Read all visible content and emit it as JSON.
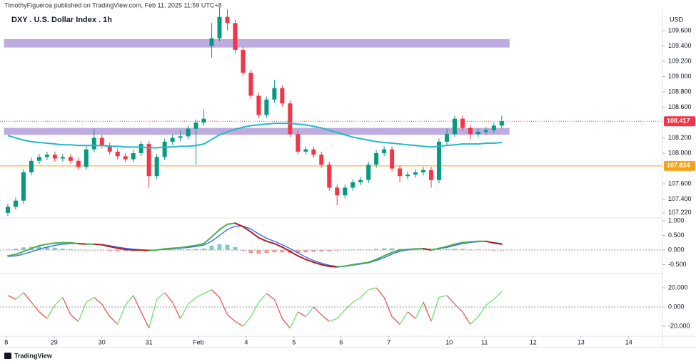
{
  "header": {
    "publisher": "TimothyFigueroa published on TradingView.com, Feb 11, 2025 11:59 UTC+8",
    "title": "DXY . U.S. Dollar Index . 1h",
    "currency": "USD"
  },
  "footer": {
    "brand": "TradingView"
  },
  "chart_data": [
    {
      "type": "candlestick",
      "up_color": "#089981",
      "down_color": "#f23645",
      "ema_color": "#22b8c8",
      "zone_color": "#b39ddb",
      "level_color": "#f7a21b",
      "price_color": "#f23645",
      "xlim": [
        -1,
        83.5
      ],
      "ylim": [
        107.163,
        109.833
      ],
      "xticks": [
        {
          "value": -0.2,
          "label": "8"
        },
        {
          "value": 5.9,
          "label": "29"
        },
        {
          "value": 12,
          "label": "30"
        },
        {
          "value": 18,
          "label": "31"
        },
        {
          "value": 24.3,
          "label": "Feb"
        },
        {
          "value": 30.4,
          "label": "4"
        },
        {
          "value": 36.5,
          "label": "5"
        },
        {
          "value": 42.5,
          "label": "6"
        },
        {
          "value": 48.6,
          "label": "7"
        },
        {
          "value": 56.3,
          "label": "10"
        },
        {
          "value": 60.8,
          "label": "11"
        },
        {
          "value": 67,
          "label": "12"
        },
        {
          "value": 73.1,
          "label": "13"
        },
        {
          "value": 79.2,
          "label": "14"
        }
      ],
      "yticks": [
        {
          "value": 109.6,
          "label": "109.600"
        },
        {
          "value": 109.4,
          "label": "109.400"
        },
        {
          "value": 109.2,
          "label": "109.200"
        },
        {
          "value": 109.0,
          "label": "109.000"
        },
        {
          "value": 108.8,
          "label": "108.800"
        },
        {
          "value": 108.6,
          "label": "108.600"
        },
        {
          "value": 108.2,
          "label": "108.200"
        },
        {
          "value": 108.0,
          "label": "108.000"
        },
        {
          "value": 107.6,
          "label": "107.600"
        },
        {
          "value": 107.4,
          "label": "107.400"
        },
        {
          "value": 107.22,
          "label": "107.220"
        }
      ],
      "zones": [
        [
          109.38,
          109.49
        ],
        [
          108.24,
          108.33
        ]
      ],
      "level": 107.834,
      "current_price": 108.417,
      "open": [
        107.22,
        107.3,
        107.38,
        107.75,
        107.9,
        107.95,
        107.98,
        107.93,
        107.95,
        107.9,
        107.82,
        108.05,
        108.2,
        108.1,
        108.02,
        107.96,
        107.92,
        108.0,
        108.12,
        107.7,
        107.95,
        108.15,
        108.2,
        108.22,
        108.32,
        108.4,
        109.4,
        109.5,
        109.78,
        109.7,
        109.35,
        109.05,
        108.75,
        108.5,
        108.7,
        108.85,
        108.65,
        108.25,
        108.02,
        108.05,
        107.98,
        107.85,
        107.55,
        107.45,
        107.55,
        107.62,
        107.65,
        107.85,
        108.0,
        108.05,
        107.8,
        107.7,
        107.72,
        107.75,
        107.78,
        107.65,
        108.15,
        108.25,
        108.45,
        108.33,
        108.25,
        108.28,
        108.3,
        108.36
      ],
      "high": [
        107.34,
        107.42,
        107.79,
        107.94,
        107.99,
        108.02,
        108.02,
        107.99,
        107.99,
        107.94,
        108.09,
        108.32,
        108.24,
        108.14,
        108.06,
        108.0,
        108.04,
        108.16,
        108.16,
        107.99,
        108.19,
        108.24,
        108.3,
        108.36,
        108.44,
        108.57,
        109.7,
        109.9,
        109.88,
        109.74,
        109.39,
        109.09,
        108.79,
        108.74,
        108.96,
        108.89,
        108.69,
        108.29,
        108.09,
        108.09,
        108.02,
        107.89,
        107.59,
        107.59,
        107.66,
        107.69,
        107.89,
        108.04,
        108.09,
        108.09,
        107.84,
        107.76,
        107.79,
        107.82,
        107.82,
        108.19,
        108.32,
        108.49,
        108.49,
        108.37,
        108.32,
        108.34,
        108.4,
        108.49
      ],
      "low": [
        107.18,
        107.26,
        107.34,
        107.71,
        107.86,
        107.91,
        107.89,
        107.89,
        107.86,
        107.78,
        107.78,
        108.01,
        108.06,
        107.98,
        107.92,
        107.88,
        107.88,
        107.96,
        107.55,
        107.66,
        107.91,
        108.11,
        108.16,
        108.18,
        107.85,
        108.36,
        109.25,
        109.46,
        109.6,
        109.31,
        109.01,
        108.71,
        108.46,
        108.46,
        108.66,
        108.61,
        108.21,
        107.98,
        107.98,
        107.94,
        107.81,
        107.51,
        107.32,
        107.41,
        107.51,
        107.58,
        107.61,
        107.81,
        107.96,
        107.76,
        107.62,
        107.66,
        107.68,
        107.71,
        107.55,
        107.61,
        108.11,
        108.21,
        108.29,
        108.18,
        108.21,
        108.24,
        108.26,
        108.32
      ],
      "close": [
        107.3,
        107.38,
        107.75,
        107.9,
        107.95,
        107.98,
        107.93,
        107.95,
        107.9,
        107.82,
        108.05,
        108.2,
        108.1,
        108.02,
        107.96,
        107.92,
        108.0,
        108.12,
        107.7,
        107.95,
        108.15,
        108.2,
        108.22,
        108.32,
        108.4,
        108.45,
        109.5,
        109.78,
        109.7,
        109.35,
        109.05,
        108.75,
        108.5,
        108.7,
        108.85,
        108.65,
        108.25,
        108.02,
        108.05,
        107.98,
        107.85,
        107.55,
        107.45,
        107.55,
        107.62,
        107.65,
        107.85,
        108.0,
        108.05,
        107.8,
        107.7,
        107.72,
        107.75,
        107.78,
        107.65,
        108.15,
        108.25,
        108.45,
        108.33,
        108.25,
        108.28,
        108.3,
        108.36,
        108.417
      ],
      "ema": [
        108.23,
        108.2,
        108.17,
        108.15,
        108.14,
        108.13,
        108.12,
        108.11,
        108.11,
        108.1,
        108.1,
        108.1,
        108.1,
        108.09,
        108.09,
        108.08,
        108.08,
        108.08,
        108.07,
        108.07,
        108.08,
        108.08,
        108.09,
        108.09,
        108.1,
        108.12,
        108.18,
        108.24,
        108.28,
        108.31,
        108.34,
        108.36,
        108.37,
        108.38,
        108.39,
        108.39,
        108.39,
        108.38,
        108.37,
        108.35,
        108.33,
        108.3,
        108.27,
        108.24,
        108.21,
        108.19,
        108.17,
        108.15,
        108.14,
        108.13,
        108.12,
        108.11,
        108.1,
        108.09,
        108.08,
        108.09,
        108.1,
        108.11,
        108.12,
        108.12,
        108.12,
        108.13,
        108.13,
        108.14
      ]
    },
    {
      "type": "macd",
      "up_color": "#4caf50",
      "down_color": "#b71c1c",
      "signal_color": "#2962ff",
      "hist_up_color": "#80cbc4",
      "hist_down_color": "#ef9a9a",
      "ylim": [
        -0.78,
        1.073
      ],
      "yticks": [
        {
          "value": 1,
          "label": "1.000"
        },
        {
          "value": 0.5,
          "label": "0.500"
        },
        {
          "value": 0,
          "label": "0.000"
        },
        {
          "value": -0.5,
          "label": "-0.500"
        }
      ],
      "macd": [
        -0.2,
        -0.15,
        -0.05,
        0.05,
        0.15,
        0.2,
        0.24,
        0.25,
        0.25,
        0.22,
        0.2,
        0.2,
        0.18,
        0.12,
        0.06,
        0.02,
        0.0,
        0.0,
        -0.02,
        0.0,
        0.04,
        0.06,
        0.08,
        0.12,
        0.16,
        0.22,
        0.45,
        0.7,
        0.88,
        0.92,
        0.8,
        0.62,
        0.42,
        0.3,
        0.22,
        0.1,
        -0.05,
        -0.2,
        -0.32,
        -0.42,
        -0.5,
        -0.56,
        -0.58,
        -0.55,
        -0.5,
        -0.46,
        -0.42,
        -0.32,
        -0.2,
        -0.08,
        0.0,
        0.02,
        0.04,
        0.05,
        0.0,
        0.06,
        0.12,
        0.2,
        0.26,
        0.28,
        0.3,
        0.3,
        0.24,
        0.2
      ],
      "signal": [
        -0.22,
        -0.2,
        -0.14,
        -0.06,
        0.03,
        0.1,
        0.16,
        0.2,
        0.22,
        0.22,
        0.21,
        0.2,
        0.19,
        0.15,
        0.1,
        0.06,
        0.03,
        0.01,
        0.0,
        0.0,
        0.02,
        0.04,
        0.06,
        0.09,
        0.12,
        0.17,
        0.3,
        0.5,
        0.7,
        0.82,
        0.82,
        0.72,
        0.55,
        0.4,
        0.3,
        0.18,
        0.05,
        -0.1,
        -0.24,
        -0.36,
        -0.45,
        -0.52,
        -0.56,
        -0.56,
        -0.52,
        -0.48,
        -0.44,
        -0.36,
        -0.26,
        -0.14,
        -0.04,
        0.0,
        0.03,
        0.04,
        0.02,
        0.04,
        0.09,
        0.16,
        0.22,
        0.26,
        0.28,
        0.29,
        0.26,
        0.22
      ],
      "histogram": [
        0.02,
        0.05,
        0.09,
        0.11,
        0.12,
        0.1,
        0.08,
        0.05,
        0.03,
        0.0,
        -0.01,
        0.0,
        -0.01,
        -0.03,
        -0.04,
        -0.04,
        -0.03,
        -0.01,
        -0.02,
        0.0,
        0.02,
        0.02,
        0.02,
        0.03,
        0.04,
        0.05,
        0.15,
        0.2,
        0.18,
        0.1,
        -0.02,
        -0.1,
        -0.13,
        -0.1,
        -0.08,
        -0.08,
        -0.1,
        -0.1,
        -0.08,
        -0.06,
        -0.05,
        -0.04,
        -0.02,
        0.01,
        0.02,
        0.02,
        0.02,
        0.04,
        0.06,
        0.06,
        0.04,
        0.02,
        0.01,
        0.01,
        -0.02,
        0.02,
        0.03,
        0.04,
        0.04,
        0.02,
        0.02,
        0.01,
        -0.02,
        -0.02
      ]
    },
    {
      "type": "oscillator",
      "up_color": "#66e060",
      "down_color": "#f04848",
      "ylim": [
        -28.9,
        34.07
      ],
      "yticks": [
        {
          "value": 20,
          "label": "20.000"
        },
        {
          "value": 0,
          "label": "0.000"
        },
        {
          "value": -20,
          "label": "-20.000"
        }
      ],
      "values": [
        12,
        8,
        15,
        5,
        -5,
        -12,
        2,
        10,
        -8,
        -15,
        5,
        10,
        3,
        -10,
        -18,
        2,
        12,
        -5,
        -22,
        8,
        15,
        5,
        -12,
        3,
        10,
        14,
        18,
        10,
        -8,
        -15,
        -20,
        -10,
        5,
        14,
        8,
        -12,
        -22,
        -5,
        -10,
        0,
        -8,
        -15,
        -12,
        -3,
        5,
        10,
        18,
        20,
        10,
        -10,
        -18,
        -5,
        -12,
        5,
        -15,
        10,
        12,
        3,
        -5,
        -18,
        -10,
        2,
        8,
        16
      ]
    }
  ]
}
